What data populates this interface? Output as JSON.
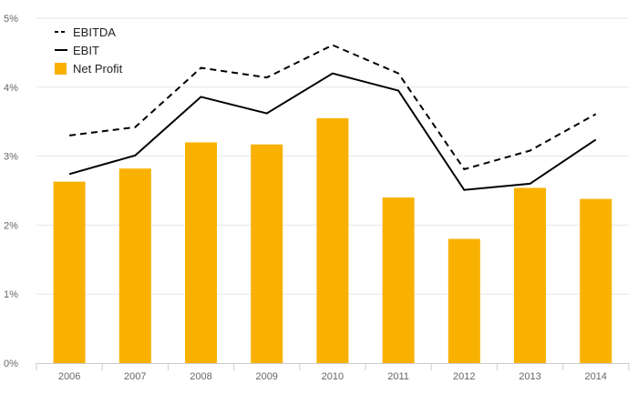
{
  "chart_data": {
    "type": "bar",
    "title": "",
    "xlabel": "",
    "ylabel": "",
    "categories": [
      "2006",
      "2007",
      "2008",
      "2009",
      "2010",
      "2011",
      "2012",
      "2013",
      "2014"
    ],
    "ylim": [
      0,
      5
    ],
    "yticks": [
      {
        "value": 0,
        "label": "0%"
      },
      {
        "value": 1,
        "label": "1%"
      },
      {
        "value": 2,
        "label": "2%"
      },
      {
        "value": 3,
        "label": "3%"
      },
      {
        "value": 4,
        "label": "4%"
      },
      {
        "value": 5,
        "label": "5%"
      }
    ],
    "grid": true,
    "legend_position": "top-left",
    "series": [
      {
        "name": "EBITDA",
        "kind": "line",
        "style": "dashed",
        "color": "#000000",
        "values": [
          3.3,
          3.42,
          4.28,
          4.14,
          4.61,
          4.2,
          2.81,
          3.08,
          3.61
        ]
      },
      {
        "name": "EBIT",
        "kind": "line",
        "style": "solid",
        "color": "#000000",
        "values": [
          2.74,
          3.01,
          3.86,
          3.62,
          4.2,
          3.95,
          2.51,
          2.6,
          3.24
        ]
      },
      {
        "name": "Net Profit",
        "kind": "bar",
        "color": "#f9b100",
        "values": [
          2.63,
          2.82,
          3.2,
          3.17,
          3.55,
          2.4,
          1.8,
          2.54,
          2.38
        ]
      }
    ]
  }
}
